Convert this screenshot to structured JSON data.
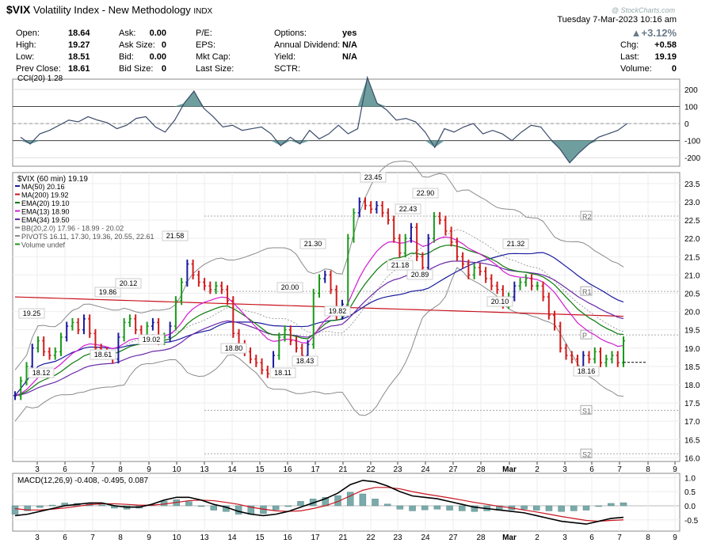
{
  "header": {
    "symbol": "$VIX",
    "name": "Volatility Index - New Methodology",
    "exchange": "INDX",
    "datetime": "Tuesday  7-Mar-2023 10:16 am",
    "watermark": "@ StockCharts.com",
    "change_pct": "+3.12%",
    "change_arrow": "▲",
    "quote": {
      "open_label": "Open:",
      "open": "18.64",
      "high_label": "High:",
      "high": "19.27",
      "low_label": "Low:",
      "low": "18.51",
      "prev_label": "Prev Close:",
      "prev": "18.61",
      "ask_label": "Ask:",
      "ask": "0.00",
      "asksize_label": "Ask Size:",
      "asksize": "0",
      "bid_label": "Bid:",
      "bid": "0.00",
      "bidsize_label": "Bid Size:",
      "bidsize": "0",
      "pe_label": "P/E:",
      "eps_label": "EPS:",
      "mktcap_label": "Mkt Cap:",
      "lastsize_label": "Last Size:",
      "options_label": "Options:",
      "options": "yes",
      "div_label": "Annual Dividend:",
      "div": "N/A",
      "yield_label": "Yield:",
      "yield": "N/A",
      "sctr_label": "SCTR:",
      "chg_label": "Chg:",
      "chg": "+0.58",
      "last_label": "Last:",
      "last": "19.19",
      "volume_label": "Volume:",
      "volume": "0"
    }
  },
  "colors": {
    "up": "#1a9a1a",
    "down": "#d21c1c",
    "blue": "#1a1a9e",
    "ma200": "#c8141e",
    "ema20": "#0a7a0a",
    "ema13": "#d21bd2",
    "ema34": "#6a2aa8",
    "bb": "#8a8a8a",
    "cci_fill": "#6e9e9e",
    "macd": "#000000",
    "signal": "#c8141e",
    "hist": "#7aaaaa"
  },
  "chart_data": [
    {
      "type": "line",
      "title": "CCI(20) 1.28",
      "y_ticks": [
        "200",
        "100",
        "0",
        "-100",
        "-200"
      ],
      "ylim": [
        -250,
        260
      ],
      "reference_lines": [
        100,
        0,
        -100
      ],
      "values": [
        -80,
        -120,
        -60,
        -40,
        -10,
        20,
        10,
        40,
        20,
        5,
        -30,
        -10,
        30,
        40,
        -20,
        -50,
        20,
        120,
        190,
        90,
        40,
        -20,
        -10,
        -40,
        -30,
        -20,
        -60,
        -130,
        -80,
        -120,
        -40,
        -90,
        -60,
        -10,
        -60,
        -30,
        270,
        120,
        80,
        20,
        30,
        10,
        -50,
        -140,
        -30,
        -50,
        -20,
        0,
        -60,
        -40,
        -60,
        -100,
        -50,
        -10,
        -20,
        -90,
        -150,
        -230,
        -170,
        -120,
        -80,
        -60,
        -40,
        1.28
      ]
    },
    {
      "type": "candlestick",
      "title": "$VIX (60 min) 19.19",
      "legend": [
        {
          "name": "MA(50) 20.16",
          "color": "#1a1a9e"
        },
        {
          "name": "MA(200) 19.92",
          "color": "#c8141e"
        },
        {
          "name": "EMA(20) 19.10",
          "color": "#0a7a0a"
        },
        {
          "name": "EMA(13) 18.90",
          "color": "#d21bd2"
        },
        {
          "name": "EMA(34) 19.50",
          "color": "#6a2aa8"
        },
        {
          "name": "BB(20,2.0) 17.96 - 18.99 - 20.02",
          "color": "#8a8a8a"
        },
        {
          "name": "PIVOTS 16.11, 17.30, 19.36, 20.55, 22.61",
          "color": "#8a8a8a"
        },
        {
          "name": "Volume undef",
          "color": "#1a9a1a"
        }
      ],
      "y_ticks": [
        "23.5",
        "23.0",
        "22.5",
        "22.0",
        "21.5",
        "21.0",
        "20.5",
        "20.0",
        "19.5",
        "19.0",
        "18.5",
        "18.0",
        "17.5",
        "17.0",
        "16.5",
        "16.0"
      ],
      "ylim": [
        15.9,
        23.8
      ],
      "x_ticks": [
        "3",
        "6",
        "7",
        "8",
        "9",
        "10",
        "13",
        "14",
        "15",
        "16",
        "17",
        "21",
        "22",
        "23",
        "24",
        "27",
        "28",
        "Mar",
        "2",
        "3",
        "6",
        "7",
        "8",
        "9"
      ],
      "price_labels": [
        "19.25",
        "18.12",
        "18.61",
        "19.86",
        "20.12",
        "19.02",
        "21.58",
        "18.80",
        "20.00",
        "18.43",
        "18.11",
        "21.30",
        "19.82",
        "23.45",
        "22.43",
        "21.18",
        "22.90",
        "20.89",
        "21.32",
        "20.10",
        "18.16"
      ],
      "pivot_labels": [
        "R2",
        "R1",
        "P",
        "S1",
        "S2"
      ],
      "pivots": [
        22.61,
        20.55,
        19.36,
        17.3,
        16.11
      ],
      "closes": [
        17.7,
        18.1,
        18.5,
        19.0,
        19.2,
        18.9,
        18.8,
        18.9,
        19.3,
        19.6,
        19.7,
        19.5,
        19.8,
        19.4,
        19.0,
        18.9,
        18.8,
        18.7,
        19.3,
        19.7,
        19.8,
        19.5,
        19.3,
        19.6,
        19.7,
        19.2,
        19.3,
        19.6,
        20.3,
        20.8,
        21.3,
        21.0,
        20.8,
        20.7,
        20.6,
        20.7,
        20.6,
        20.3,
        19.4,
        19.1,
        18.9,
        18.7,
        18.6,
        18.4,
        18.3,
        18.8,
        19.3,
        19.5,
        19.2,
        19.0,
        18.8,
        19.1,
        20.5,
        20.9,
        21.0,
        20.6,
        19.9,
        20.2,
        22.0,
        22.7,
        23.0,
        22.9,
        22.8,
        22.9,
        22.7,
        22.5,
        22.0,
        21.6,
        22.0,
        22.3,
        21.5,
        21.2,
        22.0,
        22.6,
        22.5,
        22.2,
        21.9,
        21.5,
        21.3,
        21.0,
        21.2,
        21.1,
        20.9,
        20.7,
        20.6,
        20.2,
        20.4,
        20.7,
        20.8,
        20.9,
        20.7,
        20.7,
        20.4,
        19.9,
        19.6,
        19.0,
        18.8,
        18.7,
        18.5,
        18.8,
        18.7,
        18.9,
        18.6,
        18.7,
        18.8,
        18.6,
        19.2
      ]
    },
    {
      "type": "line",
      "title": "MACD(12,26,9) -0.408, -0.495, 0.087",
      "y_ticks": [
        "1.0",
        "0.5",
        "0.0",
        "-0.5"
      ],
      "ylim": [
        -0.9,
        1.15
      ],
      "series": [
        {
          "name": "MACD",
          "values": [
            -0.35,
            -0.3,
            -0.2,
            -0.1,
            0.0,
            0.05,
            0.1,
            0.1,
            0.0,
            -0.05,
            -0.05,
            0.05,
            0.2,
            0.3,
            0.3,
            0.2,
            0.05,
            -0.05,
            -0.2,
            -0.3,
            -0.35,
            -0.3,
            -0.2,
            -0.05,
            0.1,
            0.25,
            0.45,
            0.75,
            0.9,
            0.85,
            0.7,
            0.5,
            0.35,
            0.3,
            0.25,
            0.15,
            0.05,
            -0.05,
            -0.1,
            -0.15,
            -0.2,
            -0.25,
            -0.35,
            -0.45,
            -0.55,
            -0.6,
            -0.65,
            -0.55,
            -0.45,
            -0.41
          ]
        },
        {
          "name": "Signal",
          "values": [
            -0.1,
            -0.15,
            -0.15,
            -0.12,
            -0.08,
            -0.02,
            0.04,
            0.07,
            0.07,
            0.05,
            0.02,
            0.02,
            0.06,
            0.12,
            0.18,
            0.2,
            0.18,
            0.12,
            0.05,
            -0.05,
            -0.12,
            -0.18,
            -0.2,
            -0.18,
            -0.1,
            0.0,
            0.15,
            0.35,
            0.55,
            0.65,
            0.65,
            0.6,
            0.5,
            0.42,
            0.35,
            0.28,
            0.2,
            0.12,
            0.05,
            -0.02,
            -0.08,
            -0.15,
            -0.22,
            -0.3,
            -0.38,
            -0.45,
            -0.52,
            -0.55,
            -0.52,
            -0.5
          ]
        }
      ]
    }
  ]
}
